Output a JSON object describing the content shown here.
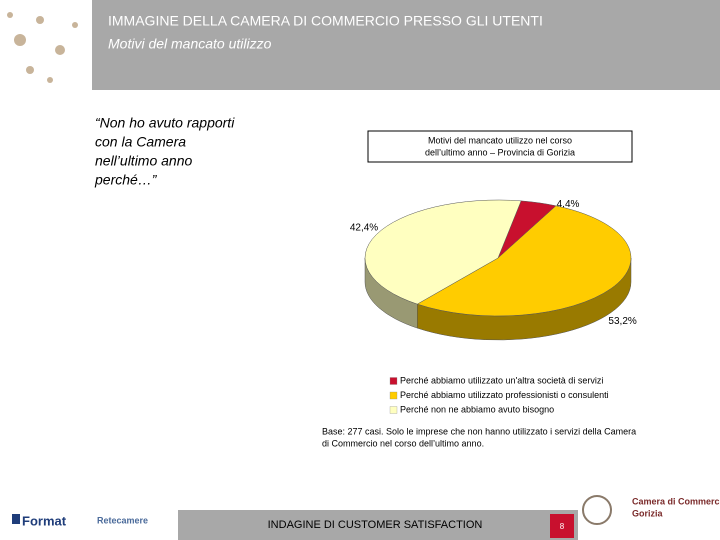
{
  "header": {
    "title": "IMMAGINE DELLA CAMERA DI COMMERCIO PRESSO GLI UTENTI",
    "subtitle": "Motivi del mancato utilizzo"
  },
  "quote": [
    "“Non ho avuto rapporti",
    "con la Camera",
    "nell’ultimo anno",
    "perché…”"
  ],
  "chart_data": {
    "type": "pie",
    "title": [
      "Motivi del mancato utilizzo nel corso",
      "dell’ultimo anno – Provincia di Gorizia"
    ],
    "categories": [
      "Perché abbiamo utilizzato un'altra società di servizi",
      "Perché abbiamo utilizzato professionisti o consulenti",
      "Perché non ne abbiamo avuto bisogno"
    ],
    "values": [
      4.4,
      53.2,
      42.4
    ],
    "value_labels": [
      "4,4%",
      "53,2%",
      "42,4%"
    ],
    "colors": [
      "#c8102e",
      "#ffcc00",
      "#ffffc0"
    ],
    "legend": "bottom"
  },
  "note": [
    "Base: 277 casi. Solo le imprese che non hanno utilizzato i servizi della Camera",
    "di Commercio nel corso dell’ultimo anno."
  ],
  "footer": {
    "logo_left": "Format",
    "logo_mid": "Retecamere",
    "banner": "INDAGINE DI CUSTOMER SATISFACTION",
    "page": "8",
    "logo_right": [
      "Camera di Commercio",
      "Gorizia"
    ]
  }
}
